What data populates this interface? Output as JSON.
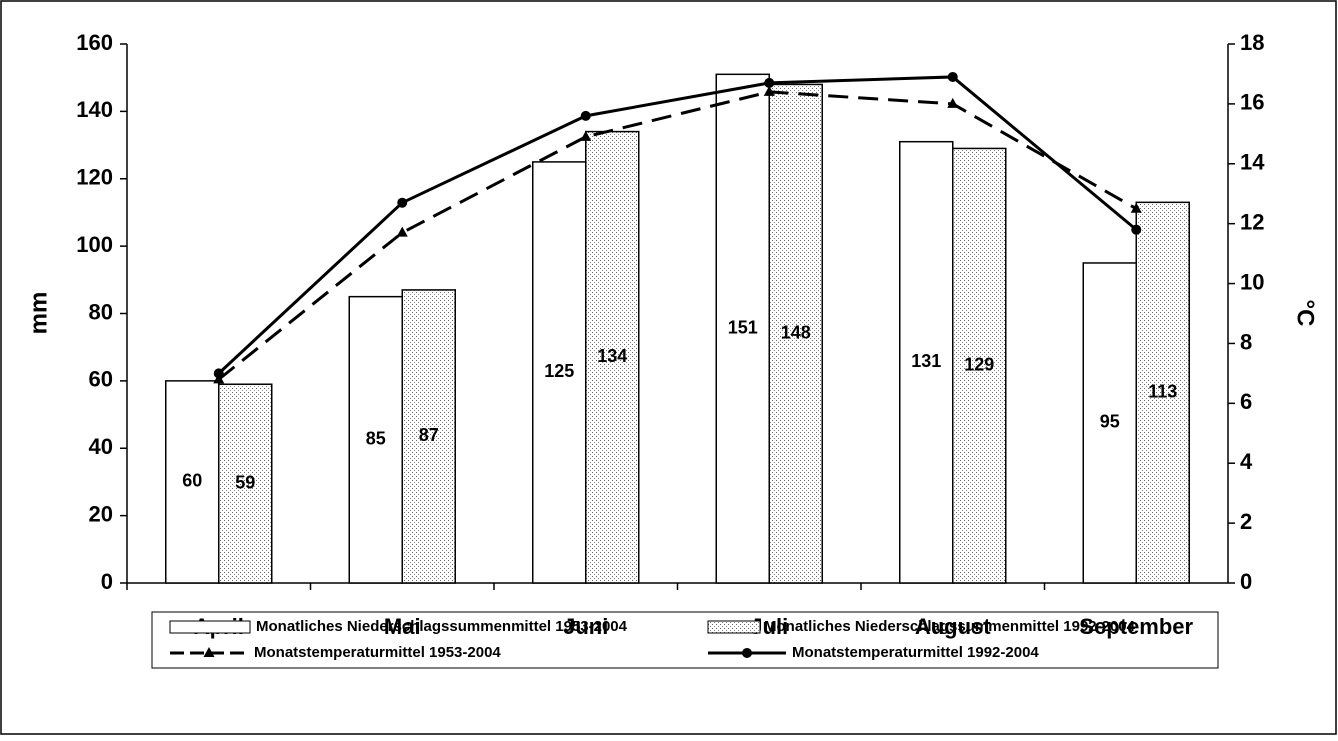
{
  "chart_data": {
    "type": "bar",
    "categories": [
      "April",
      "Mai",
      "Juni",
      "Juli",
      "August",
      "September"
    ],
    "ylabel": "mm",
    "y2label": "°C",
    "ylim": [
      0,
      160
    ],
    "yticks": [
      0,
      20,
      40,
      60,
      80,
      100,
      120,
      140,
      160
    ],
    "y2lim": [
      0,
      18
    ],
    "y2ticks": [
      0,
      2,
      4,
      6,
      8,
      10,
      12,
      14,
      16,
      18
    ],
    "series": [
      {
        "name": "Monatliches Niederschlagssummenmittel 1953-2004",
        "type": "bar",
        "color": "#ffffff",
        "pattern": "none",
        "values": [
          60,
          85,
          125,
          151,
          131,
          95
        ]
      },
      {
        "name": "Monatliches Niederschlagssummenmittel 1992-2004",
        "type": "bar",
        "color": "#ffffff",
        "pattern": "dots",
        "values": [
          59,
          87,
          134,
          148,
          129,
          113
        ]
      },
      {
        "name": "Monatstemperaturmittel 1953-2004",
        "type": "line",
        "axis": "y2",
        "color": "#000000",
        "dashed": true,
        "marker": "triangle",
        "values": [
          6.8,
          11.7,
          14.9,
          16.4,
          16.0,
          12.5
        ]
      },
      {
        "name": "Monatstemperaturmittel 1992-2004",
        "type": "line",
        "axis": "y2",
        "color": "#000000",
        "dashed": false,
        "marker": "circle",
        "values": [
          7.0,
          12.7,
          15.6,
          16.7,
          16.9,
          11.8
        ]
      }
    ]
  }
}
